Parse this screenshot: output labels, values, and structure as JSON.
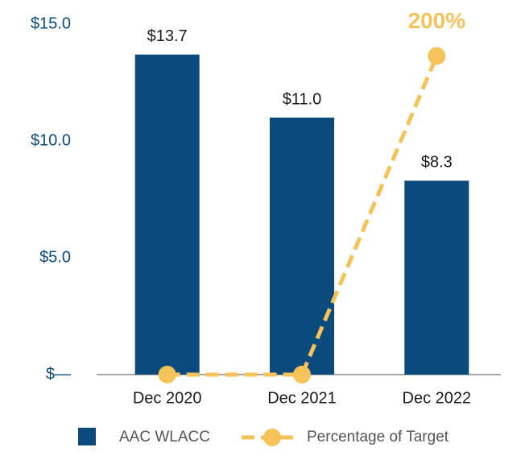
{
  "chart_data": {
    "type": "bar_line",
    "categories": [
      "Dec 2020",
      "Dec 2021",
      "Dec 2022"
    ],
    "series": [
      {
        "name": "AAC WLACC",
        "type": "bar",
        "color": "#0b4a7d",
        "values": [
          13.7,
          11.0,
          8.3
        ],
        "value_labels": [
          "$13.7",
          "$11.0",
          "$8.3"
        ]
      },
      {
        "name": "Percentage of Target",
        "type": "line",
        "axis": "y2",
        "color": "#f5c35a",
        "values": [
          0,
          0,
          200
        ],
        "value_labels": [
          null,
          null,
          "200%"
        ]
      }
    ],
    "ylim": [
      0,
      15
    ],
    "yticks": [
      {
        "value": 0,
        "label": "$—"
      },
      {
        "value": 5,
        "label": "$5.0"
      },
      {
        "value": 10,
        "label": "$10.0"
      },
      {
        "value": 15,
        "label": "$15.0"
      }
    ],
    "y2lim": [
      0,
      220
    ],
    "legend": "bottom"
  }
}
